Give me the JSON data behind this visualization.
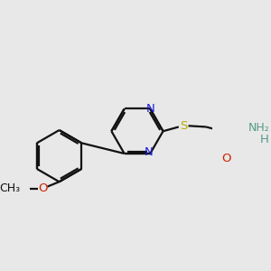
{
  "bg_color": "#e8e8e8",
  "bond_color": "#111111",
  "bond_width": 1.6,
  "atom_colors": {
    "N": "#1c1cdd",
    "O": "#cc2200",
    "S": "#bbaa00",
    "NH2_N": "#559988",
    "H": "#559988"
  },
  "font_size": 9.5,
  "dbo": 0.038
}
